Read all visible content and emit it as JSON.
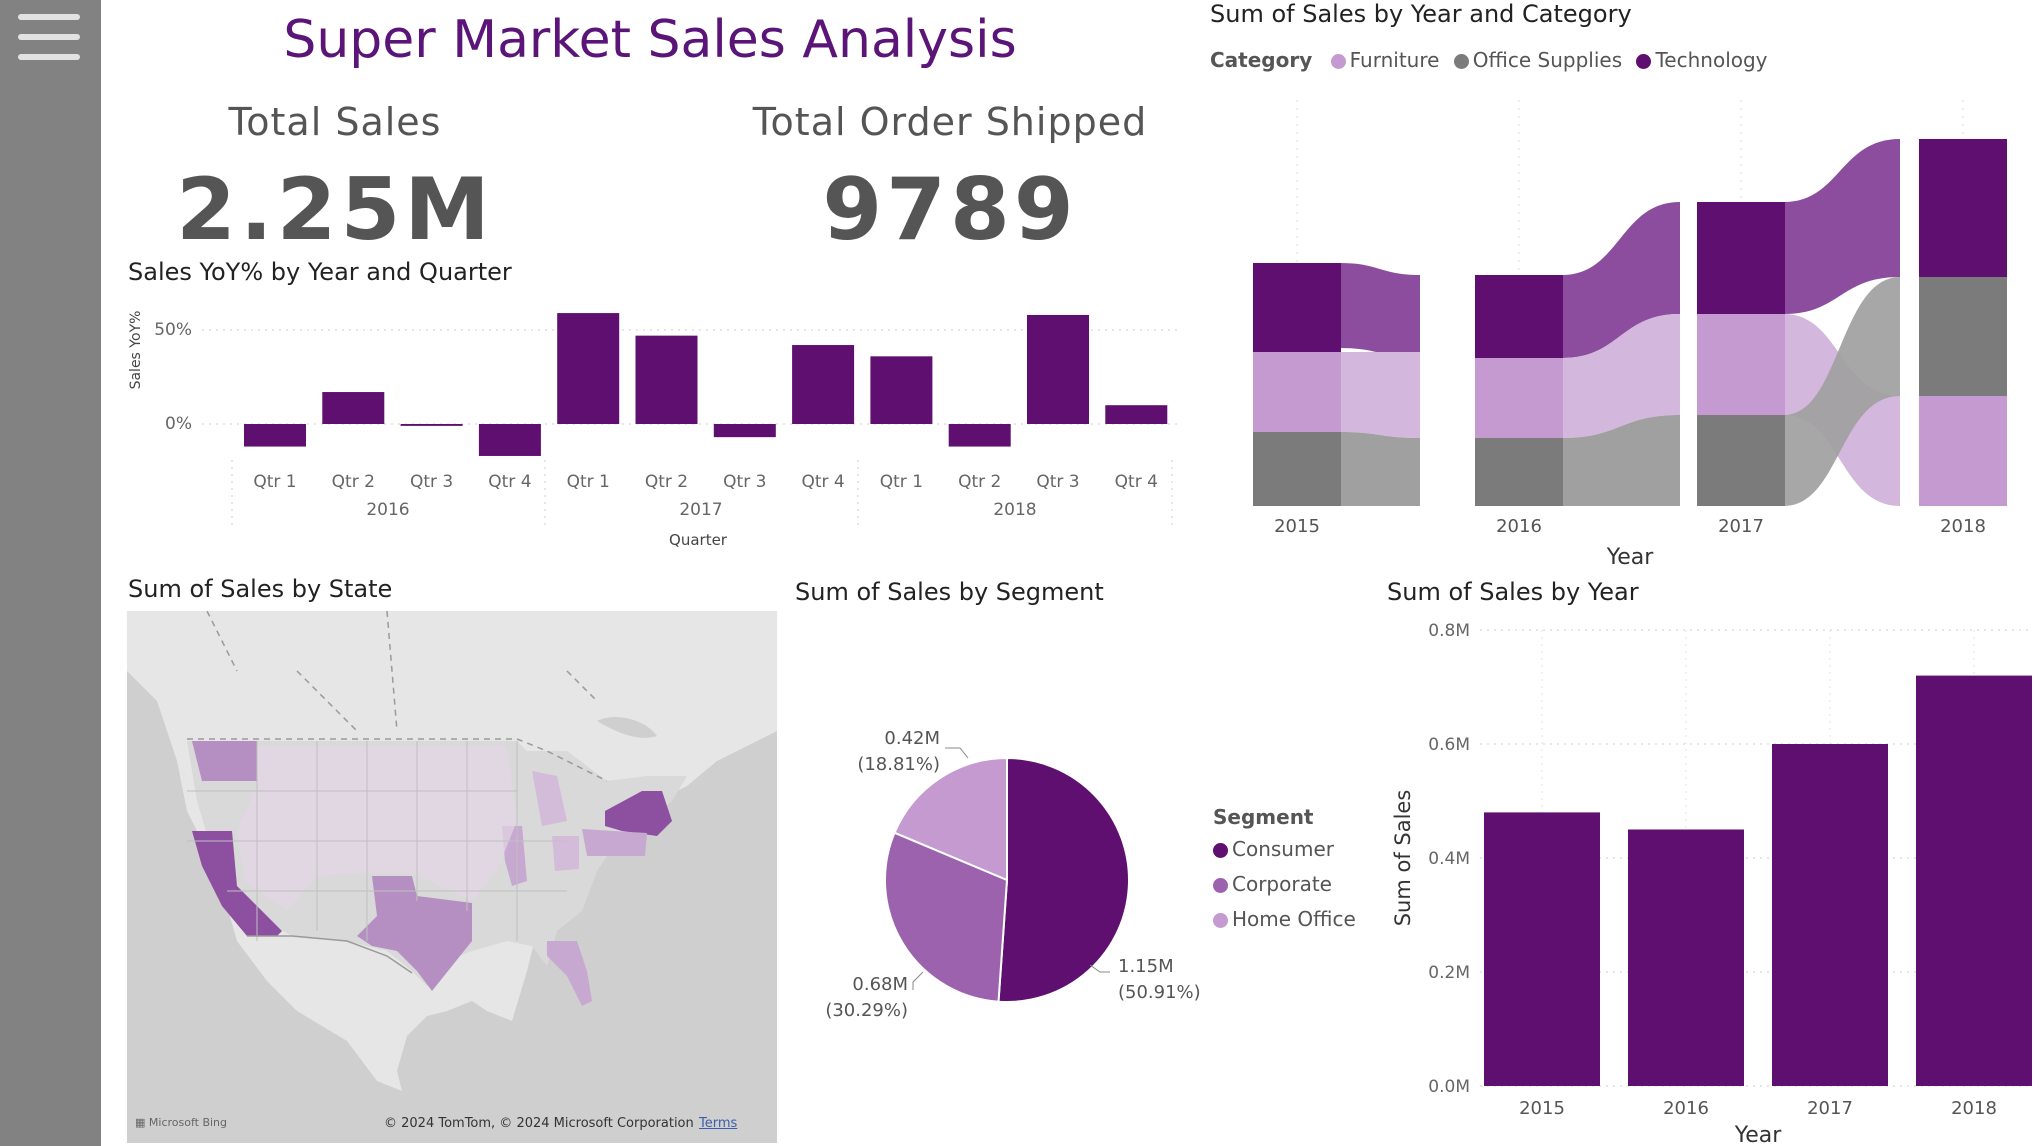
{
  "dashboard": {
    "title": "Super Market Sales Analysis"
  },
  "kpis": {
    "total_sales": {
      "label": "Total Sales",
      "value": "2.25M"
    },
    "total_orders": {
      "label": "Total Order Shipped",
      "value": "9789"
    }
  },
  "colors": {
    "purple_dark": "#5f0f6f",
    "purple_mid": "#9c62ae",
    "purple_light": "#c49ad0",
    "grey_dark": "#7b7b7b",
    "accent_title": "#5b1477"
  },
  "icons": {
    "menu": "hamburger-menu-icon"
  },
  "charts": {
    "yoy": {
      "title": "Sales YoY% by Year and Quarter",
      "ylabel": "Sales YoY%",
      "xlabel": "Quarter",
      "ytick_labels": [
        "50%",
        "0%"
      ],
      "year_labels": [
        "2016",
        "2017",
        "2018"
      ]
    },
    "ribbon": {
      "title": "Sum of Sales by Year and Category",
      "legend_title": "Category",
      "legend": [
        "Furniture",
        "Office Supplies",
        "Technology"
      ],
      "xlabel": "Year",
      "years": [
        "2015",
        "2016",
        "2017",
        "2018"
      ]
    },
    "map": {
      "title": "Sum of Sales by State",
      "logo": "Microsoft Bing",
      "copyright": "© 2024 TomTom, © 2024 Microsoft Corporation",
      "terms": "Terms"
    },
    "segment": {
      "title": "Sum of Sales by Segment",
      "legend_title": "Segment",
      "legend": [
        "Consumer",
        "Corporate",
        "Home Office"
      ],
      "labels": [
        {
          "value": "1.15M",
          "pct": "(50.91%)"
        },
        {
          "value": "0.68M",
          "pct": "(30.29%)"
        },
        {
          "value": "0.42M",
          "pct": "(18.81%)"
        }
      ]
    },
    "year": {
      "title": "Sum of Sales by Year",
      "ylabel": "Sum of Sales",
      "xlabel": "Year",
      "ytick_labels": [
        "0.8M",
        "0.6M",
        "0.4M",
        "0.2M",
        "0.0M"
      ]
    }
  },
  "chart_data": [
    {
      "type": "bar",
      "title": "Sales YoY% by Year and Quarter",
      "xlabel": "Quarter",
      "ylabel": "Sales YoY%",
      "categories": [
        "2016 Qtr 1",
        "2016 Qtr 2",
        "2016 Qtr 3",
        "2016 Qtr 4",
        "2017 Qtr 1",
        "2017 Qtr 2",
        "2017 Qtr 3",
        "2017 Qtr 4",
        "2018 Qtr 1",
        "2018 Qtr 2",
        "2018 Qtr 3",
        "2018 Qtr 4"
      ],
      "quarter_labels": [
        "Qtr 1",
        "Qtr 2",
        "Qtr 3",
        "Qtr 4",
        "Qtr 1",
        "Qtr 2",
        "Qtr 3",
        "Qtr 4",
        "Qtr 1",
        "Qtr 2",
        "Qtr 3",
        "Qtr 4"
      ],
      "values": [
        -12,
        17,
        -1,
        -17,
        59,
        47,
        -7,
        42,
        36,
        -12,
        58,
        10
      ],
      "ylim": [
        -25,
        65
      ]
    },
    {
      "type": "area",
      "title": "Sum of Sales by Year and Category",
      "xlabel": "Year",
      "categories": [
        "2015",
        "2016",
        "2017",
        "2018"
      ],
      "series": [
        {
          "name": "Furniture",
          "values": [
            0.16,
            0.17,
            0.2,
            0.22
          ]
        },
        {
          "name": "Office Supplies",
          "values": [
            0.15,
            0.14,
            0.18,
            0.25
          ]
        },
        {
          "name": "Technology",
          "values": [
            0.18,
            0.16,
            0.23,
            0.27
          ]
        }
      ],
      "legend": "top-left"
    },
    {
      "type": "pie",
      "title": "Sum of Sales by Segment",
      "categories": [
        "Consumer",
        "Corporate",
        "Home Office"
      ],
      "values": [
        1.15,
        0.68,
        0.42
      ],
      "percents": [
        50.91,
        30.29,
        18.81
      ]
    },
    {
      "type": "bar",
      "title": "Sum of Sales by Year",
      "xlabel": "Year",
      "ylabel": "Sum of Sales",
      "categories": [
        "2015",
        "2016",
        "2017",
        "2018"
      ],
      "values": [
        0.48,
        0.45,
        0.6,
        0.72
      ],
      "ylim": [
        0,
        0.8
      ]
    }
  ]
}
